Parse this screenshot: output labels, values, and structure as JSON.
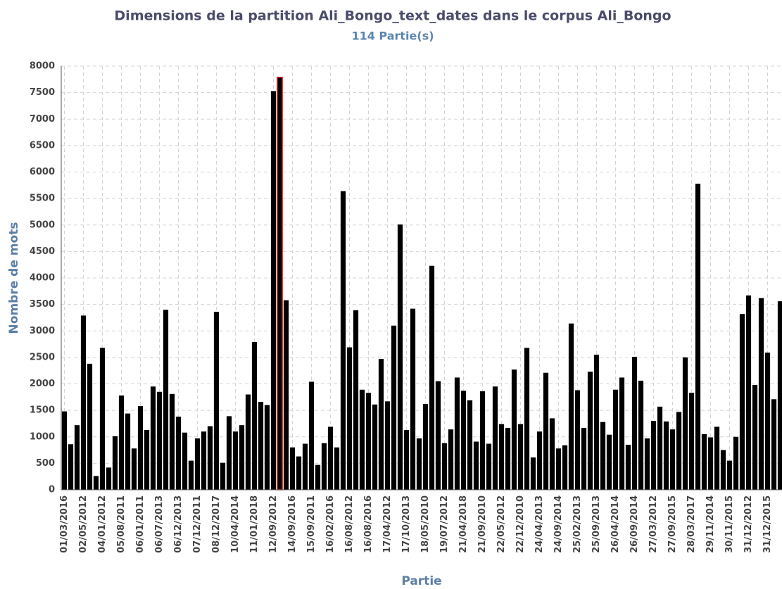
{
  "chart_data": {
    "type": "bar",
    "title": "Dimensions de la partition Ali_Bongo_text_dates dans le corpus Ali_Bongo",
    "subtitle": "114 Partie(s)",
    "x_label": "Partie",
    "y_label": "Nombre de mots",
    "categories": [
      "01/03/2016",
      null,
      null,
      "02/05/2012",
      null,
      null,
      "04/01/2012",
      null,
      null,
      "05/08/2011",
      null,
      null,
      "06/01/2011",
      null,
      null,
      "06/07/2013",
      null,
      null,
      "06/12/2013",
      null,
      null,
      "07/12/2011",
      null,
      null,
      "08/12/2017",
      null,
      null,
      "10/04/2014",
      null,
      null,
      "11/01/2018",
      null,
      null,
      "12/09/2012",
      null,
      null,
      "14/09/2016",
      null,
      null,
      "15/09/2011",
      null,
      null,
      "16/02/2016",
      null,
      null,
      "16/08/2012",
      null,
      null,
      "16/08/2016",
      null,
      null,
      "17/04/2012",
      null,
      null,
      "17/10/2013",
      null,
      null,
      "18/05/2010",
      null,
      null,
      "19/07/2012",
      null,
      null,
      "21/04/2018",
      null,
      null,
      "21/09/2010",
      null,
      null,
      "22/05/2012",
      null,
      null,
      "22/12/2010",
      null,
      null,
      "24/04/2013",
      null,
      null,
      "24/09/2014",
      null,
      null,
      "25/02/2013",
      null,
      null,
      "25/09/2013",
      null,
      null,
      "26/04/2014",
      null,
      null,
      "26/09/2014",
      null,
      null,
      "27/03/2012",
      null,
      null,
      "27/09/2015",
      null,
      null,
      "28/03/2017",
      null,
      null,
      "29/11/2014",
      null,
      null,
      "30/11/2015",
      null,
      null,
      "31/12/2012",
      null,
      null,
      "31/12/2015",
      null,
      null
    ],
    "values": [
      1480,
      860,
      1220,
      3290,
      2380,
      260,
      2680,
      420,
      1010,
      1780,
      1440,
      780,
      1580,
      1130,
      1950,
      1850,
      3400,
      1810,
      1380,
      1080,
      550,
      970,
      1100,
      1200,
      3360,
      510,
      1390,
      1100,
      1220,
      1800,
      2790,
      1660,
      1600,
      7530,
      7790,
      3580,
      800,
      630,
      870,
      2040,
      470,
      880,
      1190,
      800,
      5640,
      2690,
      3390,
      1890,
      1830,
      1610,
      2470,
      1670,
      3100,
      5010,
      1130,
      3420,
      970,
      1620,
      4230,
      2050,
      880,
      1140,
      2120,
      1870,
      1690,
      910,
      1860,
      870,
      1950,
      1240,
      1170,
      2270,
      1240,
      2680,
      610,
      1100,
      2210,
      1350,
      780,
      840,
      3140,
      1880,
      1170,
      2230,
      2550,
      1280,
      1040,
      1890,
      2120,
      850,
      2510,
      2060,
      970,
      1300,
      1570,
      1290,
      1140,
      1470,
      2500,
      1830,
      5780,
      1050,
      990,
      1190,
      750,
      550,
      1000,
      3320,
      3670,
      1980,
      3620,
      2590,
      1710,
      3560
    ],
    "color": "#000000",
    "highlight": {
      "index": 34,
      "color": "#e02020"
    },
    "ylim": [
      0,
      8000
    ],
    "yticks": [
      0,
      500,
      1000,
      1500,
      2000,
      2500,
      3000,
      3500,
      4000,
      4500,
      5000,
      5500,
      6000,
      6500,
      7000,
      7500,
      8000
    ],
    "grid": true
  }
}
